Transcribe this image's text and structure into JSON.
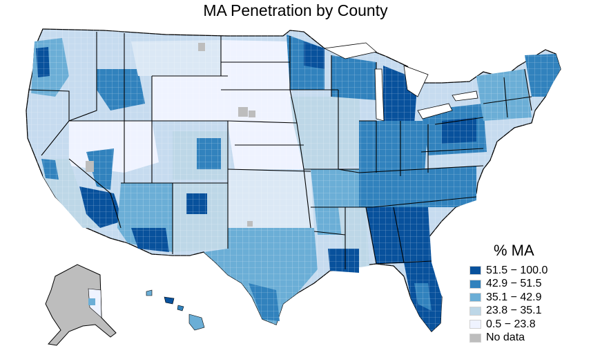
{
  "title": "MA Penetration by County",
  "legend": {
    "title": "% MA",
    "items": [
      {
        "label": "51.5 − 100.0",
        "color": "#08519c"
      },
      {
        "label": "42.9 − 51.5",
        "color": "#3182bd"
      },
      {
        "label": "35.1 − 42.9",
        "color": "#6baed6"
      },
      {
        "label": "23.8 − 35.1",
        "color": "#bdd7e7"
      },
      {
        "label": "0.5 − 23.8",
        "color": "#eff3ff"
      },
      {
        "label": "No data",
        "color": "#bdbdbd"
      }
    ]
  },
  "colors": {
    "state_border": "#000000",
    "county_border": "#9ecae1"
  }
}
